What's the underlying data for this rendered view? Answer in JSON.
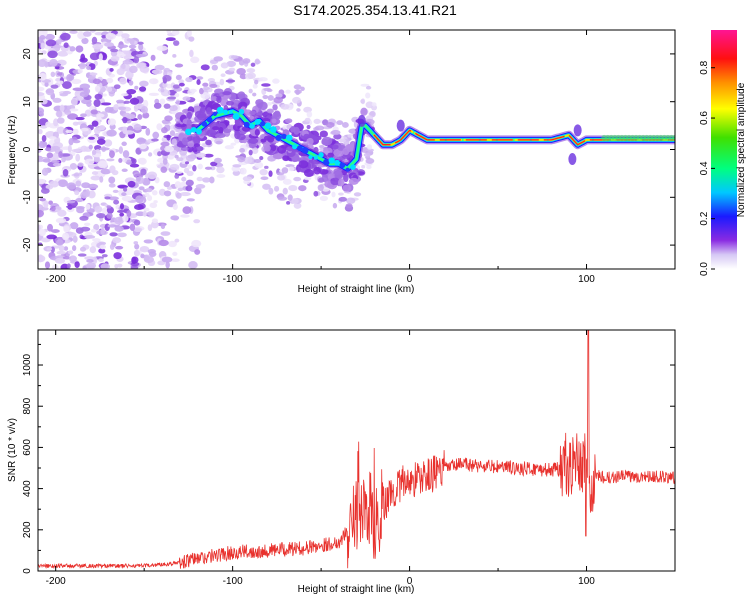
{
  "title": "S174.2025.354.13.41.R21",
  "charts": [
    {
      "type": "heatmap",
      "xlabel": "Height of straight line (km)",
      "ylabel": "Frequency (Hz)",
      "xlim": [
        -210,
        150
      ],
      "ylim": [
        -25,
        25
      ],
      "xticks": [
        -200,
        -100,
        0,
        100
      ],
      "yticks": [
        -20,
        -10,
        0,
        10,
        20
      ],
      "ridge": {
        "x": [
          -120,
          -110,
          -100,
          -95,
          -90,
          -85,
          -80,
          -75,
          -70,
          -65,
          -60,
          -55,
          -50,
          -45,
          -40,
          -35,
          -30,
          -27,
          -25,
          -20,
          -15,
          -10,
          -5,
          0,
          5,
          10,
          20,
          40,
          60,
          80,
          90,
          95,
          100,
          105,
          110,
          130,
          150
        ],
        "y": [
          4,
          7,
          8,
          7,
          5,
          6,
          4,
          3,
          2,
          1,
          0,
          -1,
          -2,
          -3,
          -3,
          -4,
          -2,
          5,
          5,
          3,
          1,
          1,
          2,
          4,
          3,
          2,
          2,
          2,
          2,
          2,
          3,
          1,
          2,
          2,
          2,
          2,
          2
        ]
      },
      "colorbar": {
        "label": "Normalized spectral amplitude",
        "range": [
          0,
          0.95
        ],
        "ticks": [
          0.0,
          0.2,
          0.4,
          0.6,
          0.8
        ]
      }
    },
    {
      "type": "line",
      "xlabel": "Height of straight line (km)",
      "ylabel": "SNR (10 * v/v)",
      "xlim": [
        -210,
        150
      ],
      "ylim": [
        0,
        1170
      ],
      "xticks": [
        -200,
        -100,
        0,
        100
      ],
      "yticks": [
        0,
        200,
        400,
        600,
        800,
        1000
      ],
      "color": "#e8312d",
      "envelope": {
        "x": [
          -210,
          -150,
          -130,
          -120,
          -100,
          -80,
          -60,
          -40,
          -30,
          -25,
          -20,
          -15,
          -10,
          -5,
          0,
          10,
          20,
          30,
          40,
          60,
          80,
          90,
          95,
          98,
          100,
          102,
          105,
          110,
          120,
          140,
          150
        ],
        "y": [
          25,
          25,
          40,
          60,
          90,
          100,
          110,
          140,
          250,
          320,
          250,
          320,
          380,
          420,
          440,
          460,
          500,
          520,
          510,
          500,
          490,
          500,
          500,
          520,
          540,
          300,
          470,
          450,
          460,
          460,
          450
        ]
      }
    }
  ]
}
